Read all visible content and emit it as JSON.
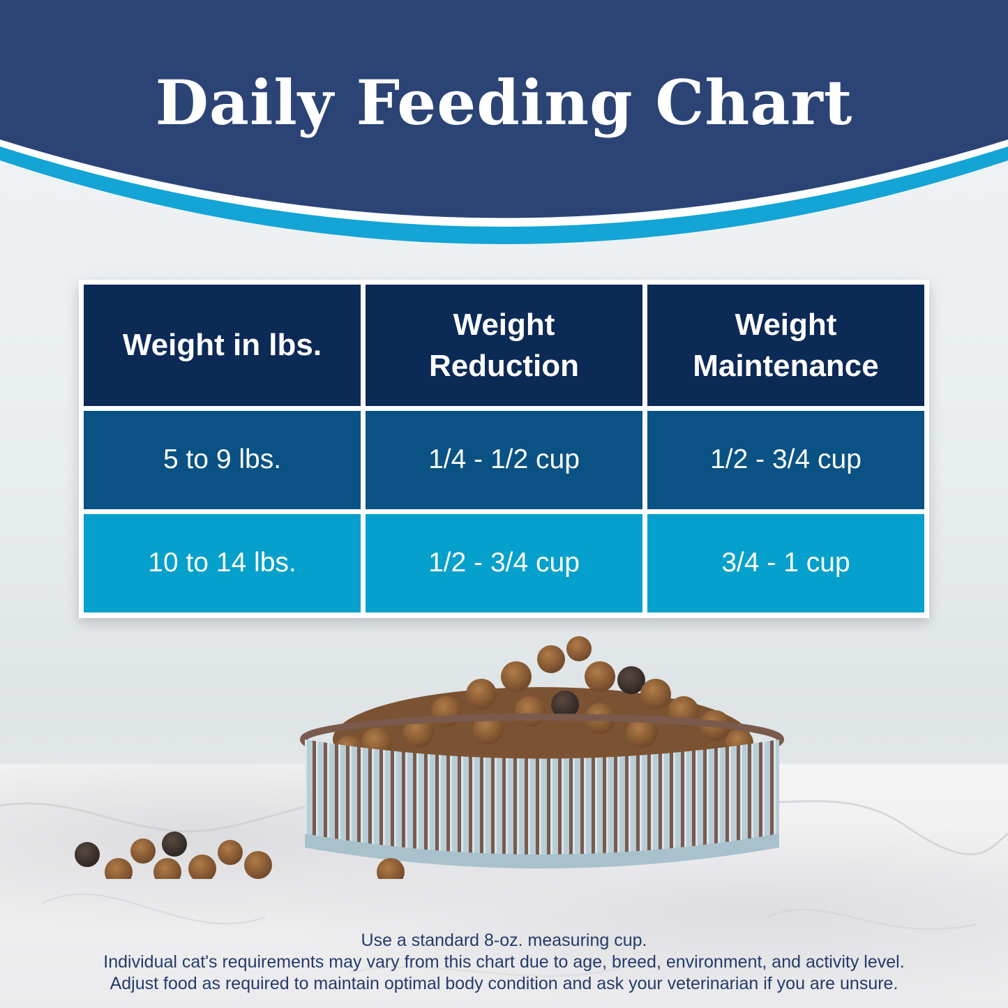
{
  "header": {
    "title": "Daily Feeding Chart",
    "colors": {
      "navy": "#2b4475",
      "accent": "#14a4d6"
    }
  },
  "table": {
    "headers": [
      "Weight in lbs.",
      "Weight Reduction",
      "Weight Maintenance"
    ],
    "rows": [
      [
        "5 to 9 lbs.",
        "1/4 - 1/2 cup",
        "1/2 - 3/4 cup"
      ],
      [
        "10 to 14 lbs.",
        "1/2 - 3/4 cup",
        "3/4 - 1 cup"
      ]
    ],
    "colors": {
      "header": "#0c2a56",
      "row1": "#0a5283",
      "row2": "#06a0cc"
    }
  },
  "image": {
    "subject": "bowl-of-cat-kibble-icon"
  },
  "footer": {
    "line1": "Use a standard 8-oz. measuring cup.",
    "line2": "Individual cat's requirements may vary from this chart due to age, breed, environment, and activity level.",
    "line3": "Adjust food as required to maintain optimal body condition and ask your veterinarian if you are unsure."
  }
}
